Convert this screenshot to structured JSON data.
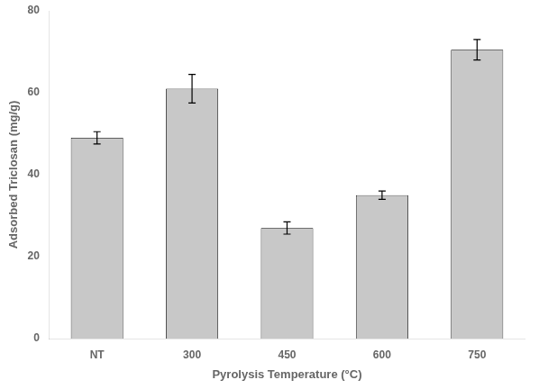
{
  "chart_data": {
    "type": "bar",
    "xlabel": "Pyrolysis Temperature (°C)",
    "ylabel": "Adsorbed Triclosan (mg/g)",
    "categories": [
      "NT",
      "300",
      "450",
      "600",
      "750"
    ],
    "values": [
      49.0,
      61.0,
      27.0,
      35.0,
      70.5
    ],
    "errors": [
      1.5,
      3.5,
      1.5,
      1.0,
      2.5
    ],
    "color": "#c8c8c8",
    "ylim": [
      0,
      80
    ],
    "yticks": [
      0,
      20,
      40,
      60,
      80
    ],
    "grid": false
  }
}
